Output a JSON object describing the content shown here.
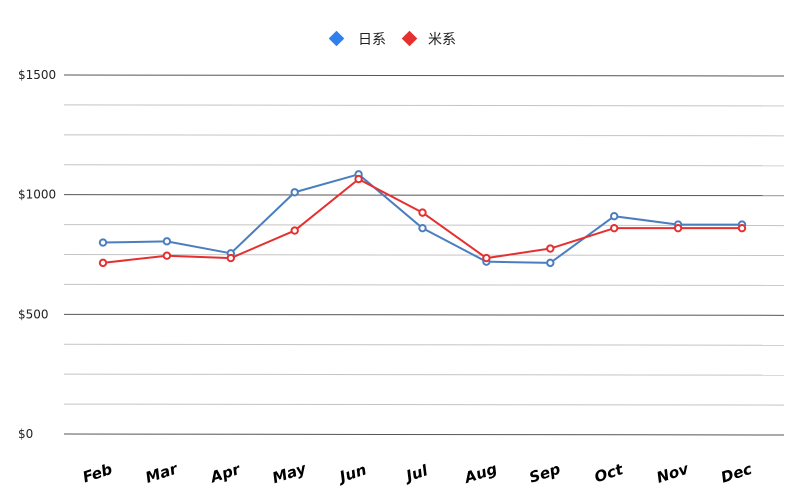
{
  "chart_data": {
    "type": "line",
    "categories": [
      "Feb",
      "Mar",
      "Apr",
      "May",
      "Jun",
      "Jul",
      "Aug",
      "Sep",
      "Oct",
      "Nov",
      "Dec"
    ],
    "series": [
      {
        "name": "日系",
        "color": "#4a7ebf",
        "marker_color": "#2f80ed",
        "values": [
          800,
          805,
          755,
          1010,
          1085,
          860,
          720,
          715,
          910,
          875,
          875
        ]
      },
      {
        "name": "米系",
        "color": "#e53030",
        "marker_color": "#e53030",
        "values": [
          715,
          745,
          735,
          850,
          1065,
          925,
          735,
          775,
          860,
          860,
          860
        ]
      }
    ],
    "y_ticks": [
      "$0",
      "$500",
      "$1000",
      "$1500"
    ],
    "ylim": [
      0,
      1500
    ],
    "grid": true,
    "legend_position": "top-center",
    "title": "",
    "xlabel": "",
    "ylabel": ""
  }
}
